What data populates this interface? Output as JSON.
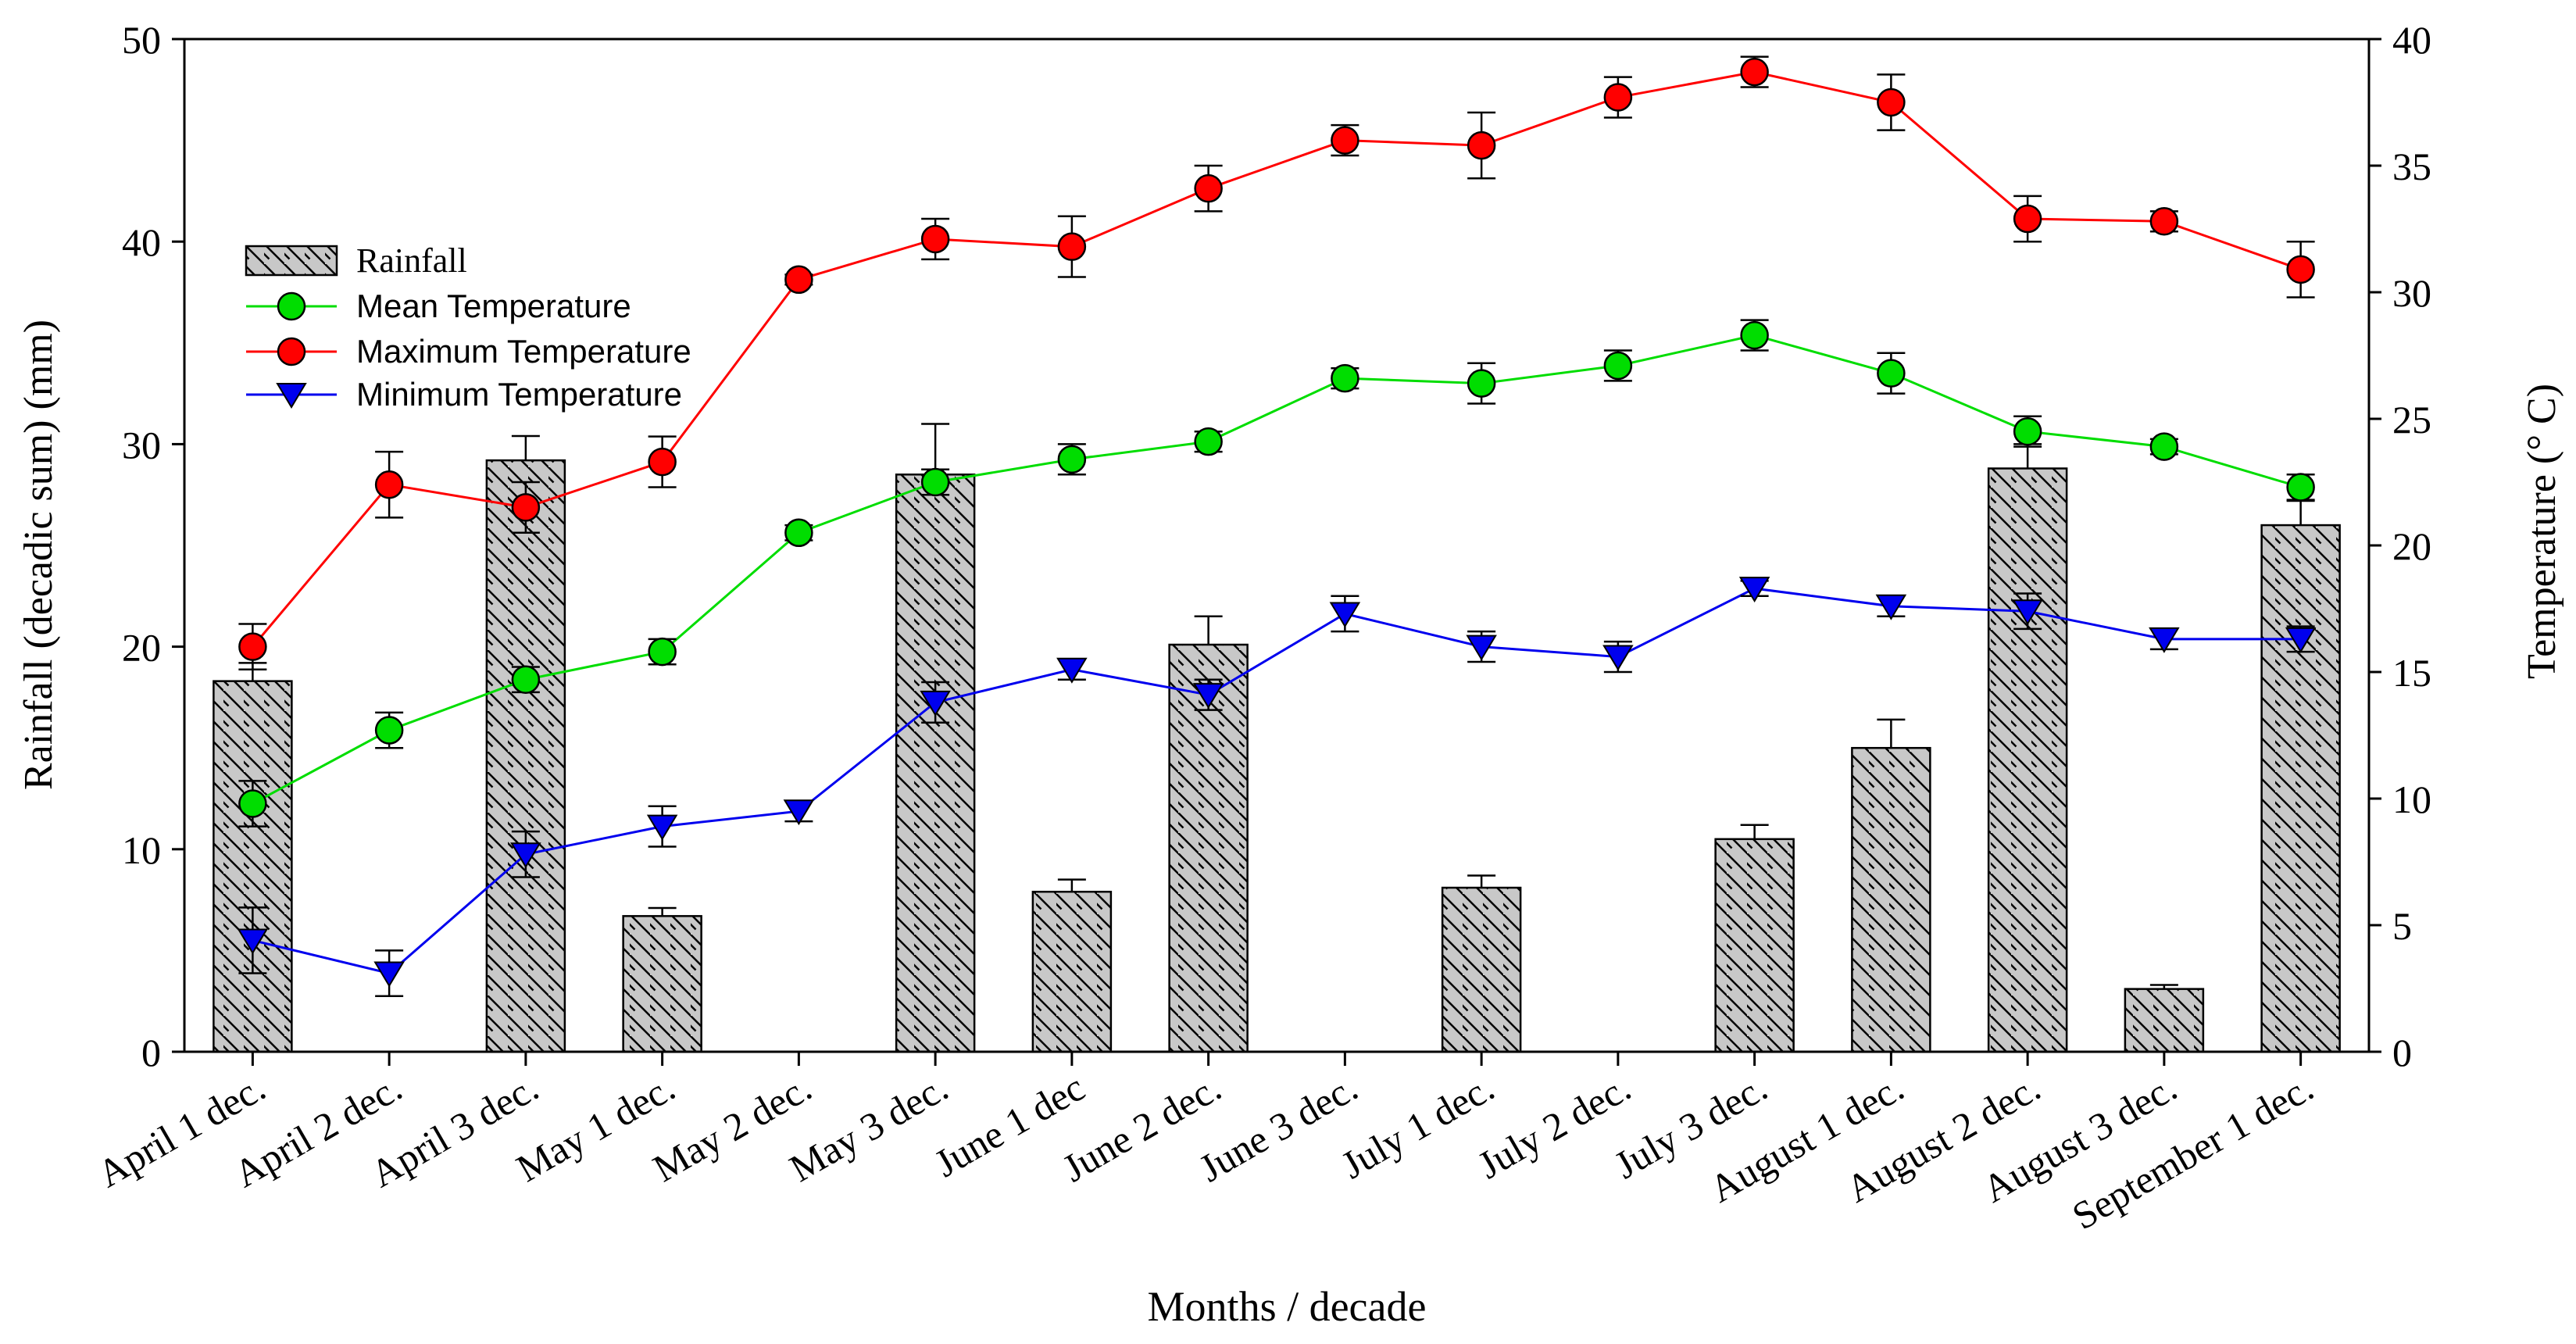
{
  "chart_data": {
    "type": "bar",
    "title": "",
    "xlabel": "Months / decade",
    "ylabel_left": "Rainfall (decadic sum) (mm)",
    "ylabel_right": "Temperature (° C)",
    "ylim_left": [
      0,
      50
    ],
    "ylim_right": [
      0,
      40
    ],
    "yticks_left": [
      0,
      10,
      20,
      30,
      40,
      50
    ],
    "yticks_right": [
      0,
      5,
      10,
      15,
      20,
      25,
      30,
      35,
      40
    ],
    "grid": false,
    "legend_position": "upper-left",
    "categories": [
      "April 1 dec.",
      "April 2 dec.",
      "April 3 dec.",
      "May 1 dec.",
      "May 2 dec.",
      "May 3 dec.",
      "June 1 dec",
      "June 2 dec.",
      "June 3 dec.",
      "July 1 dec.",
      "July 2 dec.",
      "July 3 dec.",
      "August 1 dec.",
      "August 2 dec.",
      "August 3 dec.",
      "September 1 dec."
    ],
    "series": [
      {
        "name": "Rainfall",
        "kind": "bar",
        "axis": "left",
        "color": "#c8c8c8",
        "values": [
          18.3,
          0,
          29.2,
          6.7,
          0,
          28.5,
          7.9,
          20.1,
          0,
          8.1,
          0,
          10.5,
          15.0,
          28.8,
          3.1,
          26.0
        ],
        "errors": [
          0.9,
          0,
          1.2,
          0.4,
          0,
          2.5,
          0.6,
          1.4,
          0,
          0.6,
          0,
          0.7,
          1.4,
          1.2,
          0.2,
          1.2
        ]
      },
      {
        "name": "Mean Temperature",
        "kind": "line",
        "axis": "right",
        "color": "#00dd00",
        "marker": "circle",
        "values": [
          9.8,
          12.7,
          14.7,
          15.8,
          20.5,
          22.5,
          23.4,
          24.1,
          26.6,
          26.4,
          27.1,
          28.3,
          26.8,
          24.5,
          23.9,
          22.3
        ],
        "errors": [
          0.9,
          0.7,
          0.5,
          0.5,
          0.3,
          0.5,
          0.6,
          0.4,
          0.4,
          0.8,
          0.6,
          0.6,
          0.8,
          0.6,
          0.3,
          0.5
        ]
      },
      {
        "name": "Maximum Temperature",
        "kind": "line",
        "axis": "right",
        "color": "#ff0000",
        "marker": "circle",
        "values": [
          16.0,
          22.4,
          21.5,
          23.3,
          30.5,
          32.1,
          31.8,
          34.1,
          36.0,
          35.8,
          37.7,
          38.7,
          37.5,
          32.9,
          32.8,
          30.9
        ],
        "errors": [
          0.9,
          1.3,
          1.0,
          1.0,
          0.2,
          0.8,
          1.2,
          0.9,
          0.6,
          1.3,
          0.8,
          0.6,
          1.1,
          0.9,
          0.4,
          1.1
        ]
      },
      {
        "name": "Minimum Temperature",
        "kind": "line",
        "axis": "right",
        "color": "#0000ee",
        "marker": "triangle-down",
        "values": [
          4.4,
          3.1,
          7.8,
          8.9,
          9.5,
          13.8,
          15.1,
          14.1,
          17.3,
          16.0,
          15.6,
          18.3,
          17.6,
          17.4,
          16.3,
          16.3
        ],
        "errors": [
          1.3,
          0.9,
          0.9,
          0.8,
          0.4,
          0.8,
          0.4,
          0.6,
          0.7,
          0.6,
          0.6,
          0.3,
          0.4,
          0.7,
          0.4,
          0.5
        ]
      }
    ]
  }
}
